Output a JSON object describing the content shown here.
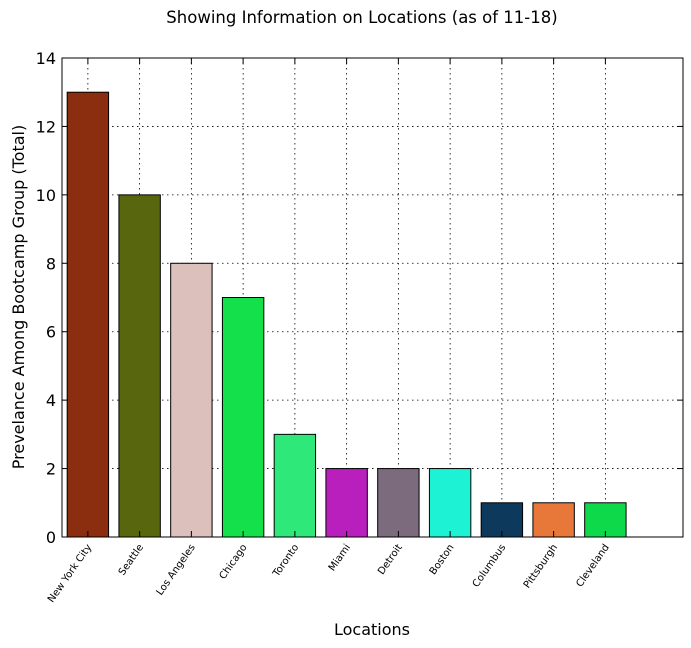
{
  "chart_data": {
    "type": "bar",
    "title": "Showing Information on Locations (as of 11-18)",
    "xlabel": "Locations",
    "ylabel": "Prevelance Among Bootcamp Group (Total)",
    "categories": [
      "New York City",
      "Seattle",
      "Los Angeles",
      "Chicago",
      "Toronto",
      "Miami",
      "Detroit",
      "Boston",
      "Columbus",
      "Pittsburgh",
      "Cleveland"
    ],
    "values": [
      13,
      10,
      8,
      7,
      3,
      2,
      2,
      2,
      1,
      1,
      1
    ],
    "colors": [
      "#8b2d0f",
      "#58660e",
      "#dcc0bb",
      "#13e04b",
      "#2fe87a",
      "#b81fbd",
      "#7b6b7c",
      "#1ef2d5",
      "#0d3a5c",
      "#e8773a",
      "#0dd94b"
    ],
    "ylim": [
      0,
      14
    ],
    "xlim": [
      0,
      12
    ],
    "yticks": [
      0,
      2,
      4,
      6,
      8,
      10,
      12,
      14
    ],
    "grid": true,
    "legend": "none"
  }
}
